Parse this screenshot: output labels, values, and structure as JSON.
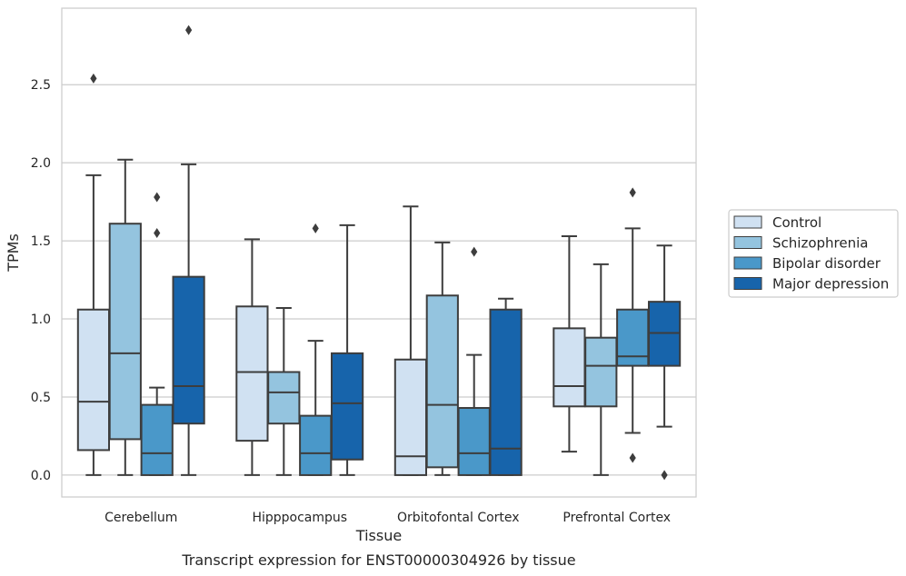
{
  "caption": "Transcript expression for ENST00000304926 by tissue",
  "chart_data": {
    "type": "box",
    "title": "",
    "xlabel": "Tissue",
    "ylabel": "TPMs",
    "ylim": [
      -0.14,
      2.99
    ],
    "yticks": [
      0.0,
      0.5,
      1.0,
      1.5,
      2.0,
      2.5
    ],
    "ytick_labels": [
      "0.0",
      "0.5",
      "1.0",
      "1.5",
      "2.0",
      "2.5"
    ],
    "grid": "horizontal",
    "legend_position": "right",
    "categories": [
      "Cerebellum",
      "Hipppocampus",
      "Orbitofontal Cortex",
      "Prefrontal Cortex"
    ],
    "series": [
      {
        "name": "Control",
        "color": "#d0e1f2",
        "boxes": [
          {
            "whisker_low": 0.0,
            "q1": 0.16,
            "median": 0.47,
            "q3": 1.06,
            "whisker_high": 1.92,
            "outliers": [
              2.54
            ]
          },
          {
            "whisker_low": 0.0,
            "q1": 0.22,
            "median": 0.66,
            "q3": 1.08,
            "whisker_high": 1.51,
            "outliers": []
          },
          {
            "whisker_low": 0.0,
            "q1": 0.0,
            "median": 0.12,
            "q3": 0.74,
            "whisker_high": 1.72,
            "outliers": []
          },
          {
            "whisker_low": 0.15,
            "q1": 0.44,
            "median": 0.57,
            "q3": 0.94,
            "whisker_high": 1.53,
            "outliers": []
          }
        ]
      },
      {
        "name": "Schizophrenia",
        "color": "#94c4df",
        "boxes": [
          {
            "whisker_low": 0.0,
            "q1": 0.23,
            "median": 0.78,
            "q3": 1.61,
            "whisker_high": 2.02,
            "outliers": []
          },
          {
            "whisker_low": 0.0,
            "q1": 0.33,
            "median": 0.53,
            "q3": 0.66,
            "whisker_high": 1.07,
            "outliers": []
          },
          {
            "whisker_low": 0.0,
            "q1": 0.05,
            "median": 0.45,
            "q3": 1.15,
            "whisker_high": 1.49,
            "outliers": []
          },
          {
            "whisker_low": 0.0,
            "q1": 0.44,
            "median": 0.7,
            "q3": 0.88,
            "whisker_high": 1.35,
            "outliers": []
          }
        ]
      },
      {
        "name": "Bipolar disorder",
        "color": "#4a98c9",
        "boxes": [
          {
            "whisker_low": 0.0,
            "q1": 0.0,
            "median": 0.14,
            "q3": 0.45,
            "whisker_high": 0.56,
            "outliers": [
              1.78,
              1.55
            ]
          },
          {
            "whisker_low": 0.0,
            "q1": 0.0,
            "median": 0.14,
            "q3": 0.38,
            "whisker_high": 0.86,
            "outliers": [
              1.58
            ]
          },
          {
            "whisker_low": 0.0,
            "q1": 0.0,
            "median": 0.14,
            "q3": 0.43,
            "whisker_high": 0.77,
            "outliers": [
              1.43
            ]
          },
          {
            "whisker_low": 0.27,
            "q1": 0.7,
            "median": 0.76,
            "q3": 1.06,
            "whisker_high": 1.58,
            "outliers": [
              1.81,
              0.11
            ]
          }
        ]
      },
      {
        "name": "Major depression",
        "color": "#1764ab",
        "boxes": [
          {
            "whisker_low": 0.0,
            "q1": 0.33,
            "median": 0.57,
            "q3": 1.27,
            "whisker_high": 1.99,
            "outliers": [
              2.85
            ]
          },
          {
            "whisker_low": 0.0,
            "q1": 0.1,
            "median": 0.46,
            "q3": 0.78,
            "whisker_high": 1.6,
            "outliers": []
          },
          {
            "whisker_low": 0.0,
            "q1": 0.0,
            "median": 0.17,
            "q3": 1.06,
            "whisker_high": 1.13,
            "outliers": []
          },
          {
            "whisker_low": 0.31,
            "q1": 0.7,
            "median": 0.91,
            "q3": 1.11,
            "whisker_high": 1.47,
            "outliers": [
              0.0
            ]
          }
        ]
      }
    ]
  }
}
